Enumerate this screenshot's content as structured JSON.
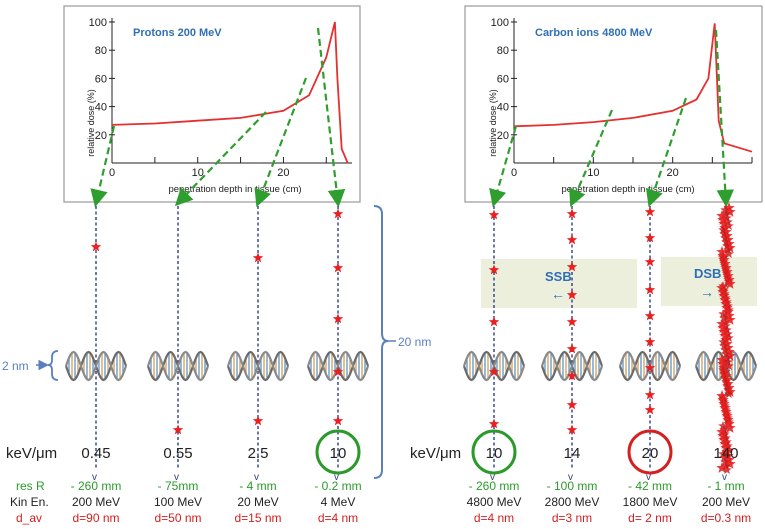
{
  "colors": {
    "dose_curve": "#e53030",
    "arrow": "#2e9e2e",
    "track": "#2c3e8a",
    "star": "#e82020",
    "bracket": "#5a7fbf",
    "box_fill": "#e8ecd6",
    "title_blue": "#2f6fb5",
    "green_text": "#2b9a2b",
    "red_text": "#d42020",
    "dna_a": "#3a7ab8",
    "dna_b": "#c8882a"
  },
  "panels": {
    "protons": {
      "title": "Protons 200 MeV",
      "ylabel": "relative dose (%)",
      "xlabel": "penetration depth in tissue (cm)",
      "yticks": [
        "100",
        "80",
        "60",
        "40",
        "20"
      ],
      "xticks": [
        "0",
        "10",
        "20"
      ]
    },
    "carbon": {
      "title": "Carbon ions 4800 MeV",
      "ylabel": "relative dose (%)",
      "xlabel": "penetration depth in tissue (cm)",
      "yticks": [
        "100",
        "80",
        "60",
        "40",
        "20"
      ],
      "xticks": [
        "0",
        "10",
        "20"
      ]
    }
  },
  "chart_data": [
    {
      "type": "line",
      "title": "Protons 200 MeV",
      "xlabel": "penetration depth in tissue (cm)",
      "ylabel": "relative dose (%)",
      "xlim": [
        0,
        28
      ],
      "ylim": [
        0,
        100
      ],
      "series": [
        {
          "x": [
            0,
            5,
            10,
            15,
            20,
            23,
            25,
            26,
            26.3,
            26.8,
            27.5
          ],
          "values": [
            27,
            28,
            30,
            32,
            37,
            48,
            75,
            100,
            60,
            10,
            0
          ]
        }
      ]
    },
    {
      "type": "line",
      "title": "Carbon ions 4800 MeV",
      "xlabel": "penetration depth in tissue (cm)",
      "ylabel": "relative dose (%)",
      "xlim": [
        0,
        30
      ],
      "ylim": [
        0,
        100
      ],
      "series": [
        {
          "x": [
            0,
            5,
            10,
            15,
            20,
            23,
            24.5,
            25.3,
            25.8,
            26.5,
            30
          ],
          "values": [
            26,
            27,
            29,
            32,
            37,
            45,
            60,
            99,
            30,
            14,
            8
          ]
        }
      ]
    }
  ],
  "labels": {
    "nm2": "2 nm",
    "nm20": "20 nm",
    "kev_left": "keV/μm",
    "kev_right": "keV/μm",
    "ssb": "SSB",
    "dsb": "DSB",
    "res_r": "res R",
    "kin_en": "Kin En.",
    "d_av": "d_av"
  },
  "protons_cols": [
    {
      "let": "0.45",
      "range": "- 260 mm",
      "energy": "200 MeV",
      "dav": "d=90 nm"
    },
    {
      "let": "0.55",
      "range": "- 75mm",
      "energy": "100 MeV",
      "dav": "d=50 nm"
    },
    {
      "let": "2.5",
      "range": "- 4 mm",
      "energy": "20 MeV",
      "dav": "d=15 nm"
    },
    {
      "let": "10",
      "range": "- 0.2 mm",
      "energy": "4 MeV",
      "dav": "d=4 nm"
    }
  ],
  "carbon_cols": [
    {
      "let": "10",
      "range": "- 260 mm",
      "energy": "4800 MeV",
      "dav": "d=4 nm"
    },
    {
      "let": "14",
      "range": "- 100 mm",
      "energy": "2800 MeV",
      "dav": "d=3 nm"
    },
    {
      "let": "20",
      "range": "- 42 mm",
      "energy": "1800 MeV",
      "dav": "d= 2 nm"
    },
    {
      "let": "140",
      "range": "- 1 mm",
      "energy": "200 MeV",
      "dav": "d=0.3 nm"
    }
  ]
}
